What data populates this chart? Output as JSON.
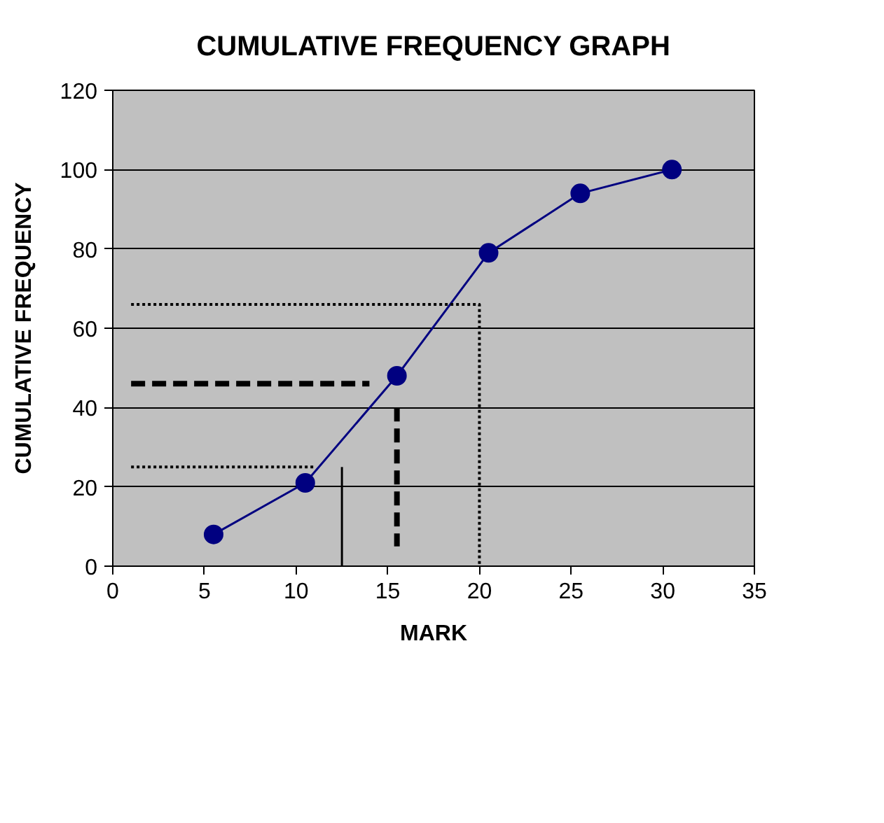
{
  "chart_data": {
    "type": "line",
    "title": "CUMULATIVE FREQUENCY GRAPH",
    "xlabel": "MARK",
    "ylabel": "CUMULATIVE FREQUENCY",
    "xlim": [
      0,
      35
    ],
    "xticks": [
      0,
      5,
      10,
      15,
      20,
      25,
      30,
      35
    ],
    "ylim": [
      0,
      120
    ],
    "yticks": [
      0,
      20,
      40,
      60,
      80,
      100,
      120
    ],
    "grid": "y",
    "series": [
      {
        "color": "#000080",
        "x": [
          5.5,
          10.5,
          15.5,
          20.5,
          25.5,
          30.5
        ],
        "values": [
          8,
          21,
          48,
          79,
          94,
          100
        ],
        "marker": "circle",
        "line_style": "solid"
      },
      {
        "color": "#000000",
        "x": [
          1,
          20,
          20
        ],
        "values": [
          66,
          66,
          0
        ],
        "marker": "none",
        "line_style": "dotted"
      },
      {
        "color": "#000000",
        "x": [
          1,
          14
        ],
        "values": [
          46,
          46
        ],
        "marker": "none",
        "line_style": "dashed"
      },
      {
        "color": "#000000",
        "x": [
          15.5,
          15.5
        ],
        "values": [
          40,
          5
        ],
        "marker": "none",
        "line_style": "dashed"
      },
      {
        "color": "#000000",
        "x": [
          1,
          11
        ],
        "values": [
          25,
          25
        ],
        "marker": "none",
        "line_style": "dotted"
      },
      {
        "color": "#000000",
        "x": [
          12.5,
          12.5
        ],
        "values": [
          25,
          0
        ],
        "marker": "none",
        "line_style": "solid"
      }
    ]
  }
}
